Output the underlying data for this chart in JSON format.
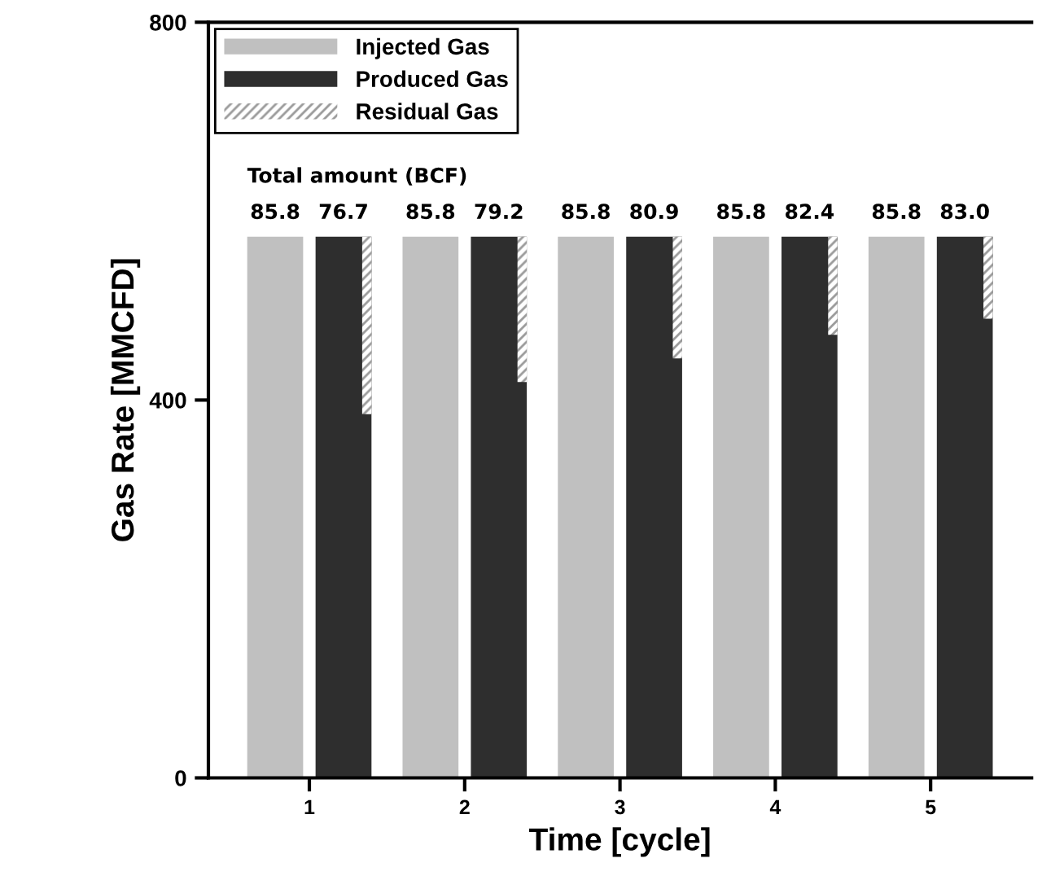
{
  "chart_data": {
    "type": "bar",
    "xlabel": "Time [cycle]",
    "ylabel": "Gas Rate [MMCFD]",
    "categories": [
      "1",
      "2",
      "3",
      "4",
      "5"
    ],
    "series": [
      {
        "name": "Injected Gas",
        "color": "#c0c0c0",
        "values": [
          573,
          573,
          573,
          573,
          573
        ]
      },
      {
        "name": "Produced Gas",
        "color": "#2e2e2e",
        "values": [
          573,
          573,
          573,
          573,
          573
        ]
      },
      {
        "name": "Residual Gas",
        "color": "#9a9a9a",
        "base": [
          385,
          419,
          444,
          469,
          486
        ],
        "values": [
          188,
          154,
          129,
          104,
          87
        ]
      }
    ],
    "annotations": [
      {
        "text": "Total amount (BCF)",
        "x": "1",
        "y": 573
      },
      {
        "text": "85.8",
        "x": "1",
        "y": 573
      },
      {
        "text": "76.7",
        "x": "1",
        "y": 573
      },
      {
        "text": "85.8",
        "x": "2",
        "y": 573
      },
      {
        "text": "79.2",
        "x": "2",
        "y": 573
      },
      {
        "text": "85.8",
        "x": "3",
        "y": 573
      },
      {
        "text": "80.9",
        "x": "3",
        "y": 573
      },
      {
        "text": "85.8",
        "x": "4",
        "y": 573
      },
      {
        "text": "82.4",
        "x": "4",
        "y": 573
      },
      {
        "text": "85.8",
        "x": "5",
        "y": 573
      },
      {
        "text": "83.0",
        "x": "5",
        "y": 573
      }
    ],
    "ylim": [
      0,
      800
    ],
    "yticks": [
      0,
      400,
      800
    ],
    "grid": false,
    "legend": "top left"
  }
}
